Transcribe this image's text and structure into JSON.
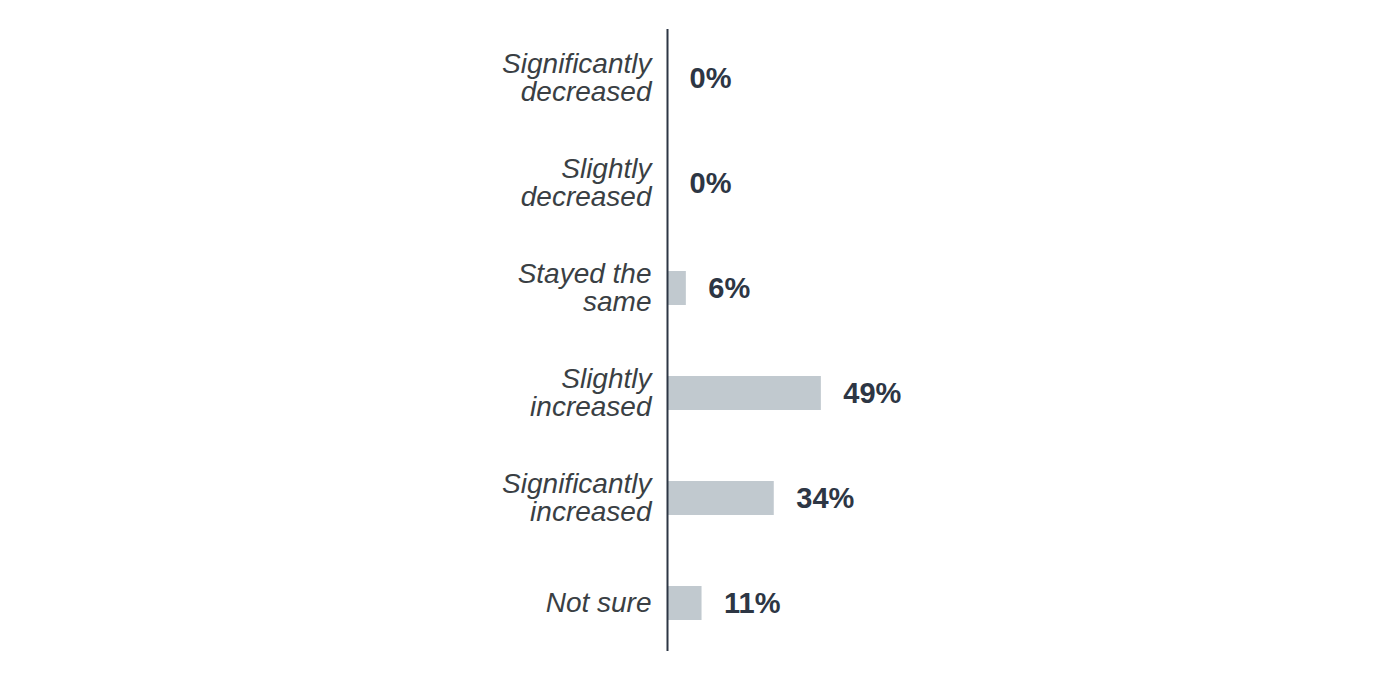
{
  "chart_data": {
    "type": "bar",
    "orientation": "horizontal",
    "categories": [
      "Significantly\ndecreased",
      "Slightly\ndecreased",
      "Stayed the\nsame",
      "Slightly\nincreased",
      "Significantly\nincreased",
      "Not sure"
    ],
    "values": [
      0,
      0,
      6,
      49,
      34,
      11
    ],
    "value_labels": [
      "0%",
      "0%",
      "6%",
      "49%",
      "34%",
      "11%"
    ],
    "color": "#c1c9cf",
    "xlim": [
      0,
      100
    ],
    "data_labels": true,
    "tick_labels": "y",
    "grid": false
  }
}
